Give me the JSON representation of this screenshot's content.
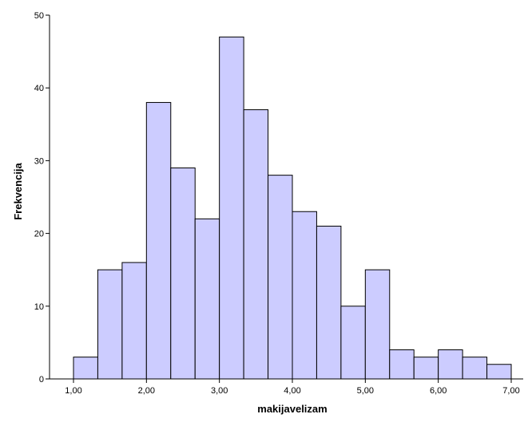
{
  "chart_data": {
    "type": "bar",
    "xlabel": "makijavelizam",
    "ylabel": "Frekvencija",
    "xlim": [
      0.667,
      7.0
    ],
    "ylim": [
      0,
      50
    ],
    "bin_width": 0.3333,
    "bins": [
      {
        "start": 1.0,
        "end": 1.3333,
        "count": 3
      },
      {
        "start": 1.3333,
        "end": 1.6667,
        "count": 15
      },
      {
        "start": 1.6667,
        "end": 2.0,
        "count": 16
      },
      {
        "start": 2.0,
        "end": 2.3333,
        "count": 38
      },
      {
        "start": 2.3333,
        "end": 2.6667,
        "count": 29
      },
      {
        "start": 2.6667,
        "end": 3.0,
        "count": 22
      },
      {
        "start": 3.0,
        "end": 3.3333,
        "count": 47
      },
      {
        "start": 3.3333,
        "end": 3.6667,
        "count": 37
      },
      {
        "start": 3.6667,
        "end": 4.0,
        "count": 28
      },
      {
        "start": 4.0,
        "end": 4.3333,
        "count": 23
      },
      {
        "start": 4.3333,
        "end": 4.6667,
        "count": 21
      },
      {
        "start": 4.6667,
        "end": 5.0,
        "count": 10
      },
      {
        "start": 5.0,
        "end": 5.3333,
        "count": 15
      },
      {
        "start": 5.3333,
        "end": 5.6667,
        "count": 4
      },
      {
        "start": 5.6667,
        "end": 6.0,
        "count": 3
      },
      {
        "start": 6.0,
        "end": 6.3333,
        "count": 4
      },
      {
        "start": 6.3333,
        "end": 6.6667,
        "count": 3
      },
      {
        "start": 6.6667,
        "end": 7.0,
        "count": 2
      }
    ],
    "x_ticks": [
      {
        "value": 1,
        "label": "1,00"
      },
      {
        "value": 2,
        "label": "2,00"
      },
      {
        "value": 3,
        "label": "3,00"
      },
      {
        "value": 4,
        "label": "4,00"
      },
      {
        "value": 5,
        "label": "5,00"
      },
      {
        "value": 6,
        "label": "6,00"
      },
      {
        "value": 7,
        "label": "7,00"
      }
    ],
    "y_ticks": [
      {
        "value": 0,
        "label": "0"
      },
      {
        "value": 10,
        "label": "10"
      },
      {
        "value": 20,
        "label": "20"
      },
      {
        "value": 30,
        "label": "30"
      },
      {
        "value": 40,
        "label": "40"
      },
      {
        "value": 50,
        "label": "50"
      }
    ],
    "grid": false,
    "colors": {
      "bar_fill": "#ccccff",
      "bar_stroke": "#000000",
      "axis": "#000000"
    }
  }
}
